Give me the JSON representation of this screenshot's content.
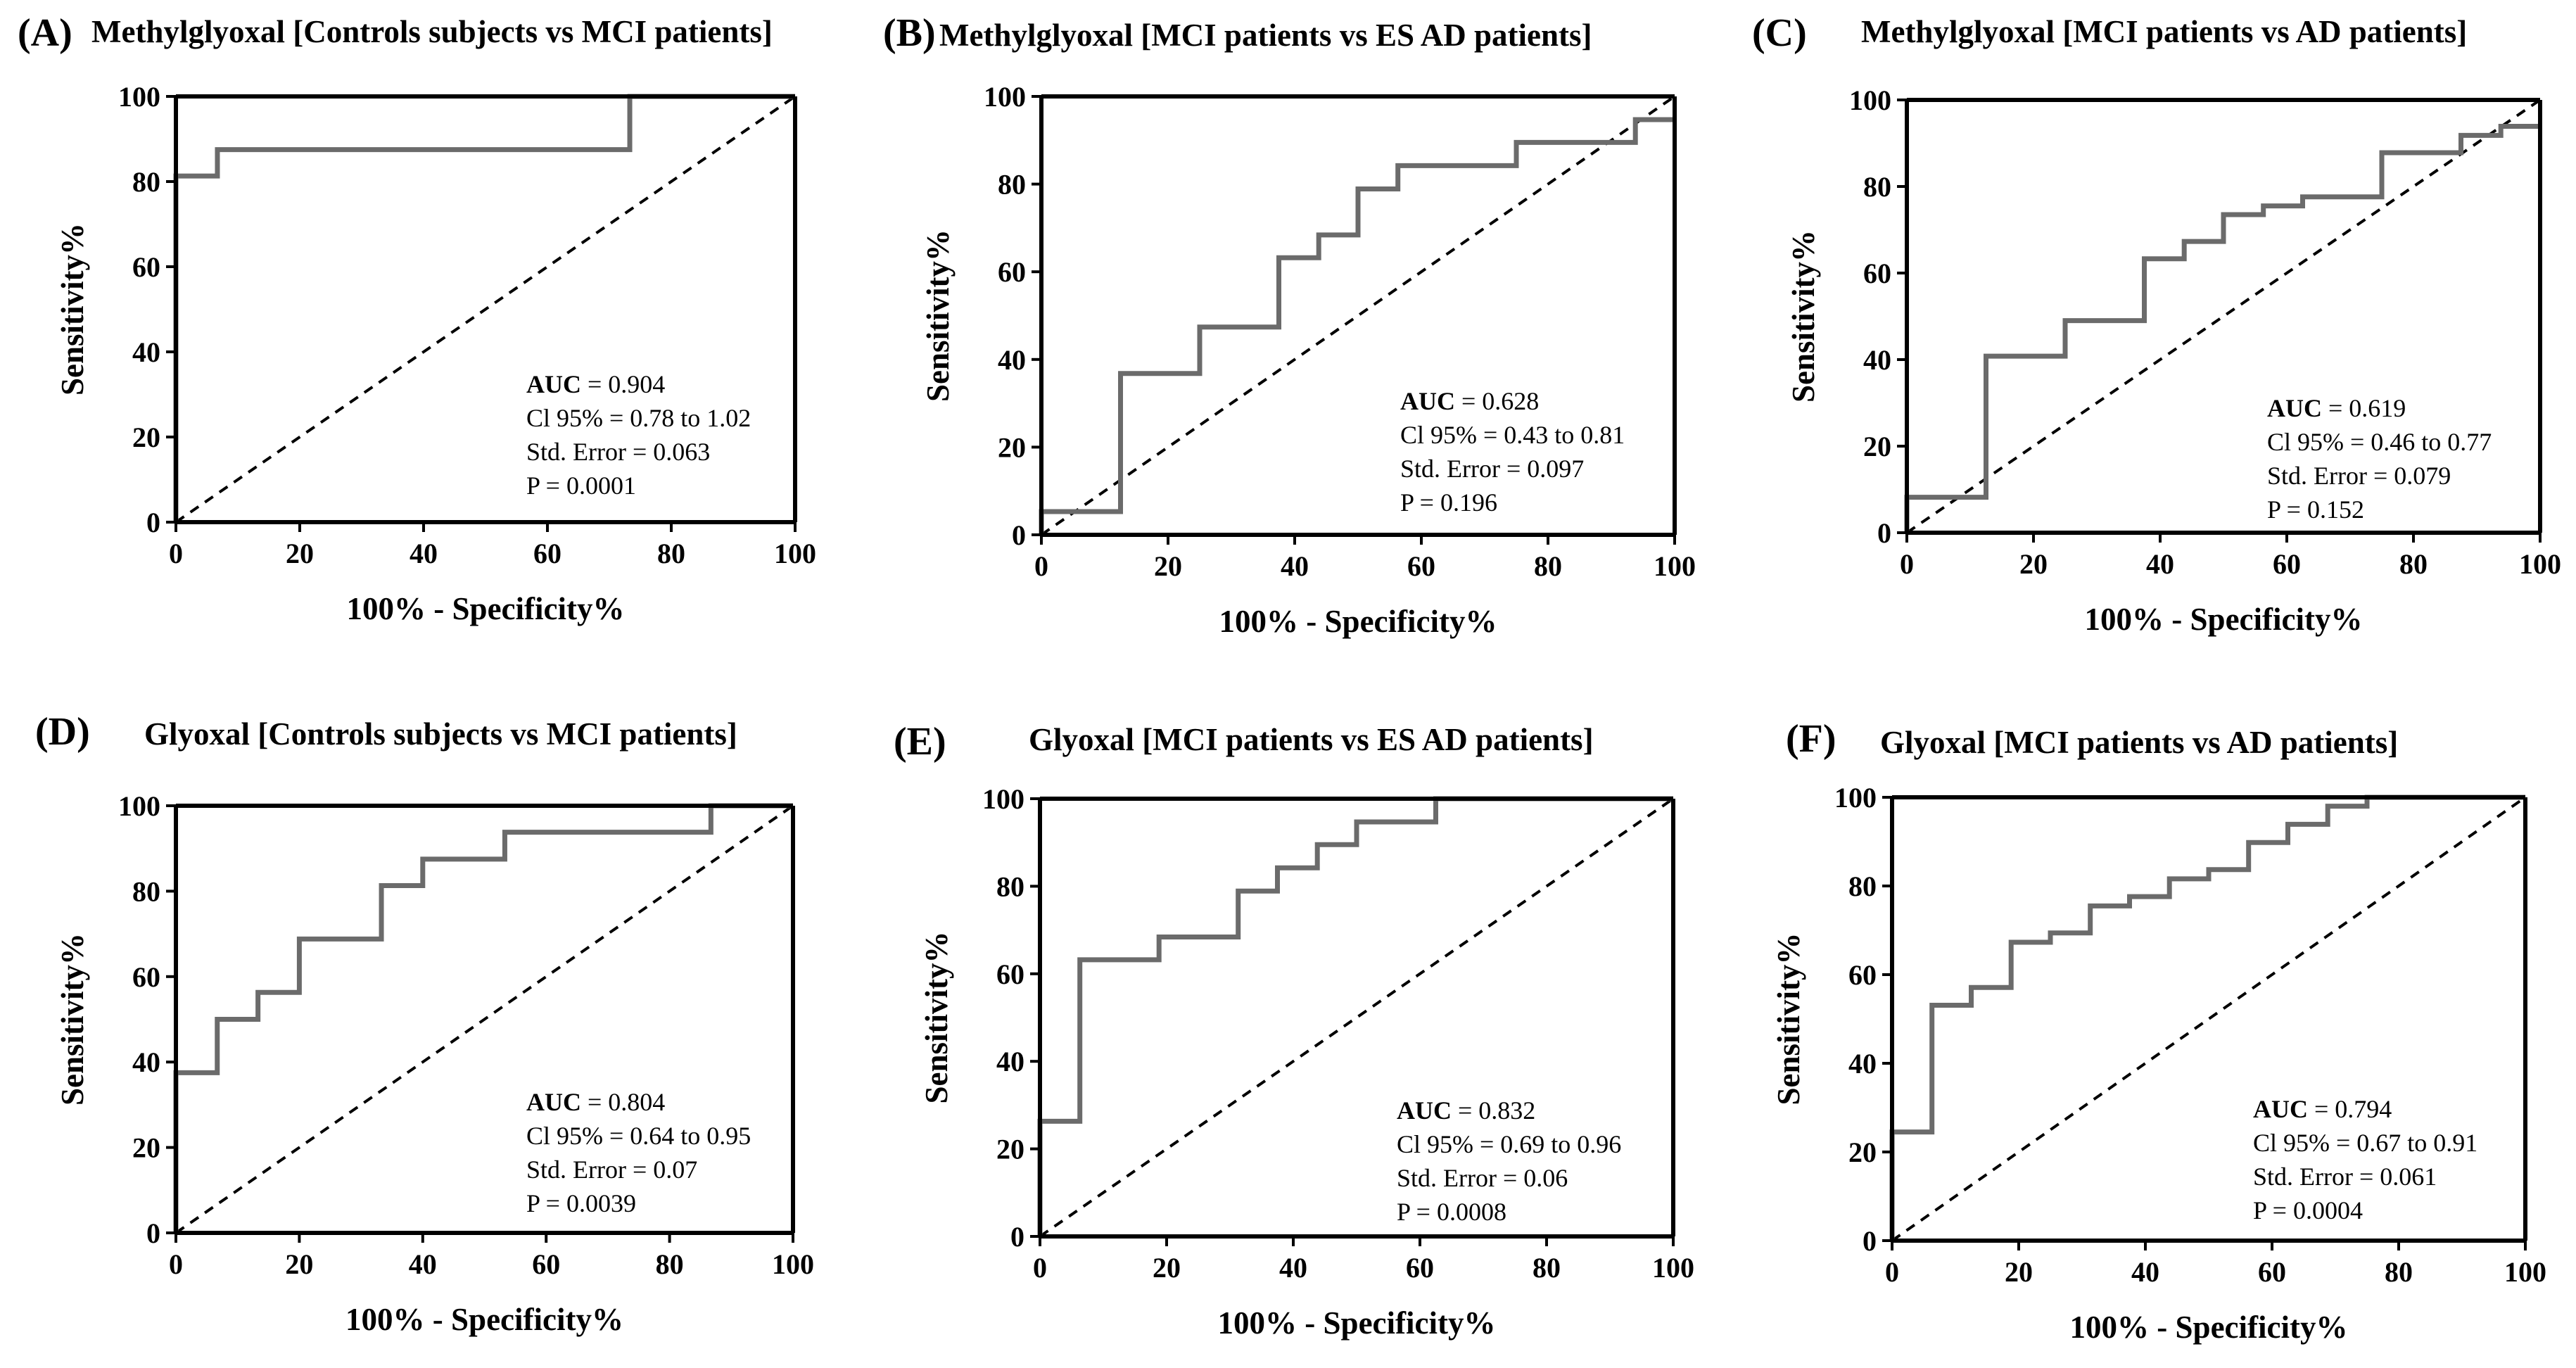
{
  "chart_data": [
    {
      "type": "line",
      "panel_label": "(A)",
      "title": "Methylglyoxal [Controls subjects vs MCI patients]",
      "xlabel": "100% - Specificity%",
      "ylabel": "Sensitivity%",
      "xlim": [
        0,
        100
      ],
      "ylim": [
        0,
        100
      ],
      "xticks": [
        "0",
        "20",
        "40",
        "60",
        "80",
        "100"
      ],
      "yticks": [
        "0",
        "20",
        "40",
        "60",
        "80",
        "100"
      ],
      "series": [
        {
          "name": "ROC curve",
          "x": [
            0,
            0,
            6.7,
            6.7,
            73.3,
            73.3,
            100
          ],
          "y": [
            0,
            81.3,
            81.3,
            87.5,
            87.5,
            100,
            100
          ]
        },
        {
          "name": "Reference line",
          "x": [
            0,
            100
          ],
          "y": [
            0,
            100
          ]
        }
      ],
      "stats": {
        "auc_key": "AUC",
        "auc_value": " = 0.904",
        "ci": "Cl 95% = 0.78 to 1.02",
        "se": "Std. Error = 0.063",
        "p": "P = 0.0001"
      }
    },
    {
      "type": "line",
      "panel_label": "(B)",
      "title": "Methylglyoxal [MCI patients vs ES AD patients]",
      "xlabel": "100% - Specificity%",
      "ylabel": "Sensitivity%",
      "xlim": [
        0,
        100
      ],
      "ylim": [
        0,
        100
      ],
      "xticks": [
        "0",
        "20",
        "40",
        "60",
        "80",
        "100"
      ],
      "yticks": [
        "0",
        "20",
        "40",
        "60",
        "80",
        "100"
      ],
      "series": [
        {
          "name": "ROC curve",
          "x": [
            0,
            0,
            12.5,
            12.5,
            25,
            25,
            37.5,
            37.5,
            43.8,
            43.8,
            50,
            50,
            56.3,
            56.3,
            75,
            75,
            93.8,
            93.8,
            100
          ],
          "y": [
            0,
            5.3,
            5.3,
            36.8,
            36.8,
            47.4,
            47.4,
            63.2,
            63.2,
            68.4,
            68.4,
            78.9,
            78.9,
            84.2,
            84.2,
            89.5,
            89.5,
            94.7,
            94.7
          ]
        },
        {
          "name": "Reference line",
          "x": [
            0,
            100
          ],
          "y": [
            0,
            100
          ]
        }
      ],
      "stats": {
        "auc_key": "AUC",
        "auc_value": " = 0.628",
        "ci": "Cl 95% = 0.43 to 0.81",
        "se": "Std. Error = 0.097",
        "p": "P = 0.196"
      }
    },
    {
      "type": "line",
      "panel_label": "(C)",
      "title": "Methylglyoxal [MCI patients vs AD patients]",
      "xlabel": "100% - Specificity%",
      "ylabel": "Sensitivity%",
      "xlim": [
        0,
        100
      ],
      "ylim": [
        0,
        100
      ],
      "xticks": [
        "0",
        "20",
        "40",
        "60",
        "80",
        "100"
      ],
      "yticks": [
        "0",
        "20",
        "40",
        "60",
        "80",
        "100"
      ],
      "series": [
        {
          "name": "ROC curve",
          "x": [
            0,
            0,
            12.5,
            12.5,
            25,
            25,
            37.5,
            37.5,
            43.8,
            43.8,
            50,
            50,
            56.3,
            56.3,
            62.5,
            62.5,
            75,
            75,
            87.5,
            87.5,
            93.8,
            93.8,
            100
          ],
          "y": [
            0,
            8.2,
            8.2,
            40.8,
            40.8,
            49,
            49,
            63.3,
            63.3,
            67.3,
            67.3,
            73.5,
            73.5,
            75.5,
            75.5,
            77.6,
            77.6,
            87.8,
            87.8,
            91.8,
            91.8,
            93.9,
            93.9
          ]
        },
        {
          "name": "Reference line",
          "x": [
            0,
            100
          ],
          "y": [
            0,
            100
          ]
        }
      ],
      "stats": {
        "auc_key": "AUC",
        "auc_value": " = 0.619",
        "ci": "Cl 95% = 0.46 to 0.77",
        "se": "Std. Error = 0.079",
        "p": "P = 0.152"
      }
    },
    {
      "type": "line",
      "panel_label": "(D)",
      "title": "Glyoxal [Controls subjects vs MCI patients]",
      "xlabel": "100% - Specificity%",
      "ylabel": "Sensitivity%",
      "xlim": [
        0,
        100
      ],
      "ylim": [
        0,
        100
      ],
      "xticks": [
        "0",
        "20",
        "40",
        "60",
        "80",
        "100"
      ],
      "yticks": [
        "0",
        "20",
        "40",
        "60",
        "80",
        "100"
      ],
      "series": [
        {
          "name": "ROC curve",
          "x": [
            0,
            0,
            6.7,
            6.7,
            13.3,
            13.3,
            20,
            20,
            33.3,
            33.3,
            40,
            40,
            53.3,
            53.3,
            86.7,
            86.7,
            100
          ],
          "y": [
            0,
            37.5,
            37.5,
            50,
            50,
            56.3,
            56.3,
            68.8,
            68.8,
            81.3,
            81.3,
            87.5,
            87.5,
            93.8,
            93.8,
            100,
            100
          ]
        },
        {
          "name": "Reference line",
          "x": [
            0,
            100
          ],
          "y": [
            0,
            100
          ]
        }
      ],
      "stats": {
        "auc_key": "AUC",
        "auc_value": " = 0.804",
        "ci": "Cl 95% = 0.64 to 0.95",
        "se": "Std. Error = 0.07",
        "p": "P = 0.0039"
      }
    },
    {
      "type": "line",
      "panel_label": "(E)",
      "title": "Glyoxal [MCI patients vs ES AD patients]",
      "xlabel": "100% - Specificity%",
      "ylabel": "Sensitivity%",
      "xlim": [
        0,
        100
      ],
      "ylim": [
        0,
        100
      ],
      "xticks": [
        "0",
        "20",
        "40",
        "60",
        "80",
        "100"
      ],
      "yticks": [
        "0",
        "20",
        "40",
        "60",
        "80",
        "100"
      ],
      "series": [
        {
          "name": "ROC curve",
          "x": [
            0,
            0,
            6.3,
            6.3,
            18.8,
            18.8,
            31.3,
            31.3,
            37.5,
            37.5,
            43.8,
            43.8,
            50,
            50,
            62.5,
            62.5,
            100
          ],
          "y": [
            0,
            26.3,
            26.3,
            63.2,
            63.2,
            68.4,
            68.4,
            78.9,
            78.9,
            84.2,
            84.2,
            89.5,
            89.5,
            94.7,
            94.7,
            100,
            100
          ]
        },
        {
          "name": "Reference line",
          "x": [
            0,
            100
          ],
          "y": [
            0,
            100
          ]
        }
      ],
      "stats": {
        "auc_key": "AUC",
        "auc_value": " = 0.832",
        "ci": "Cl 95% = 0.69 to 0.96",
        "se": "Std. Error = 0.06",
        "p": "P = 0.0008"
      }
    },
    {
      "type": "line",
      "panel_label": "(F)",
      "title": "Glyoxal [MCI patients vs AD patients]",
      "xlabel": "100% - Specificity%",
      "ylabel": "Sensitivity%",
      "xlim": [
        0,
        100
      ],
      "ylim": [
        0,
        100
      ],
      "xticks": [
        "0",
        "20",
        "40",
        "60",
        "80",
        "100"
      ],
      "yticks": [
        "0",
        "20",
        "40",
        "60",
        "80",
        "100"
      ],
      "series": [
        {
          "name": "ROC curve",
          "x": [
            0,
            0,
            6.3,
            6.3,
            12.5,
            12.5,
            18.8,
            18.8,
            25,
            25,
            31.3,
            31.3,
            37.5,
            37.5,
            43.8,
            43.8,
            50,
            50,
            56.3,
            56.3,
            62.5,
            62.5,
            68.8,
            68.8,
            75,
            75,
            100
          ],
          "y": [
            0,
            24.5,
            24.5,
            53.1,
            53.1,
            57.1,
            57.1,
            67.3,
            67.3,
            69.4,
            69.4,
            75.5,
            75.5,
            77.6,
            77.6,
            81.6,
            81.6,
            83.7,
            83.7,
            89.8,
            89.8,
            93.9,
            93.9,
            98,
            98,
            100,
            100
          ]
        },
        {
          "name": "Reference line",
          "x": [
            0,
            100
          ],
          "y": [
            0,
            100
          ]
        }
      ],
      "stats": {
        "auc_key": "AUC",
        "auc_value": " = 0.794",
        "ci": "Cl 95% = 0.67 to 0.91",
        "se": "Std. Error = 0.061",
        "p": "P = 0.0004"
      }
    }
  ]
}
